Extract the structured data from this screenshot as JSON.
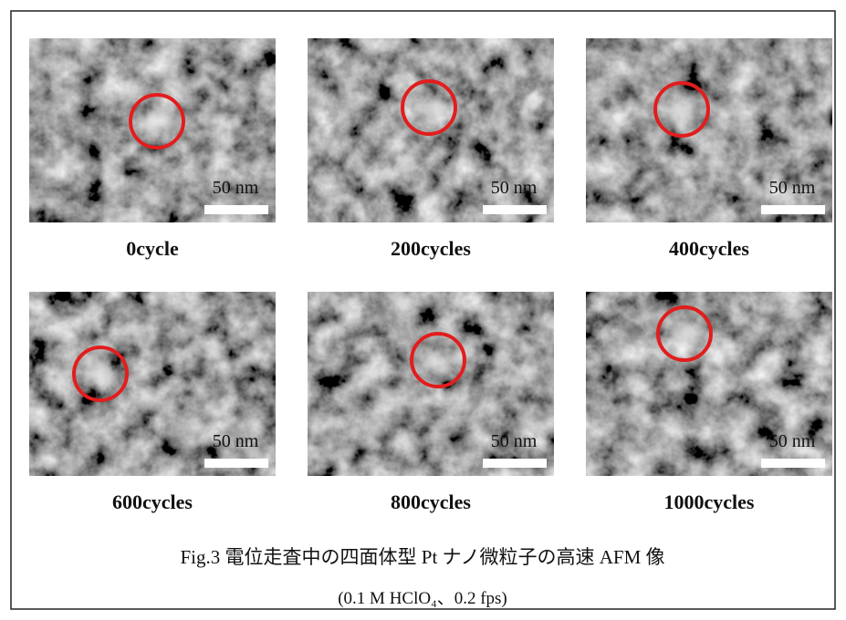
{
  "panels": [
    {
      "label": "0cycle",
      "scale_label": "50 nm"
    },
    {
      "label": "200cycles",
      "scale_label": "50 nm"
    },
    {
      "label": "400cycles",
      "scale_label": "50 nm"
    },
    {
      "label": "600cycles",
      "scale_label": "50 nm"
    },
    {
      "label": "800cycles",
      "scale_label": "50 nm"
    },
    {
      "label": "1000cycles",
      "scale_label": "50 nm"
    }
  ],
  "caption": {
    "line1": "Fig.3 電位走査中の四面体型 Pt ナノ微粒子の高速 AFM 像",
    "line2": "(0.1 M HClO₄、0.2 fps)"
  }
}
